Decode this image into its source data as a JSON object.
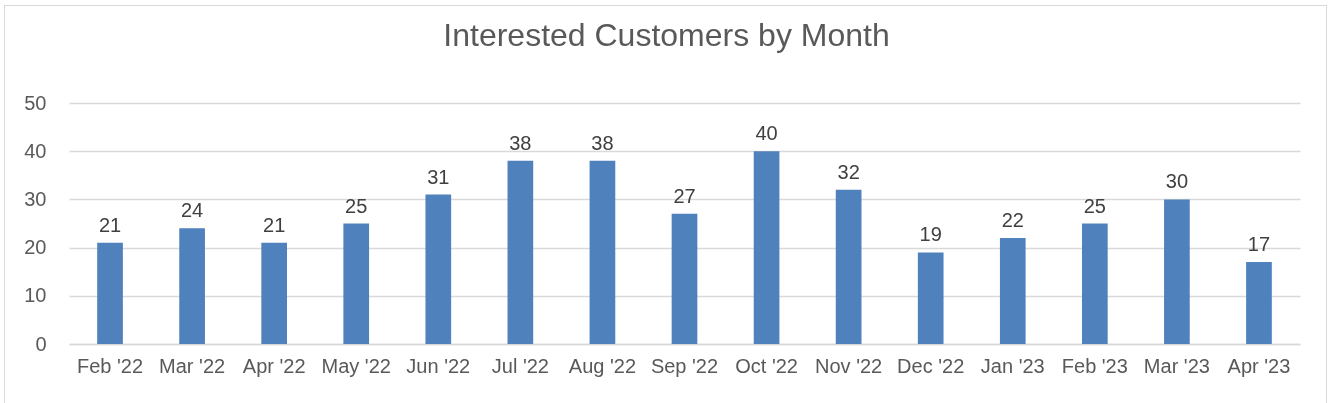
{
  "chart_data": {
    "type": "bar",
    "title": "Interested Customers by Month",
    "categories": [
      "Feb '22",
      "Mar '22",
      "Apr '22",
      "May '22",
      "Jun '22",
      "Jul '22",
      "Aug '22",
      "Sep '22",
      "Oct '22",
      "Nov '22",
      "Dec '22",
      "Jan '23",
      "Feb '23",
      "Mar '23",
      "Apr '23"
    ],
    "values": [
      21,
      24,
      21,
      25,
      31,
      38,
      38,
      27,
      40,
      32,
      19,
      22,
      25,
      30,
      17
    ],
    "color": "#4f81bd",
    "ylim": [
      0,
      50
    ],
    "yticks": [
      0,
      10,
      20,
      30,
      40,
      50
    ],
    "grid": "y",
    "data_labels": true
  }
}
